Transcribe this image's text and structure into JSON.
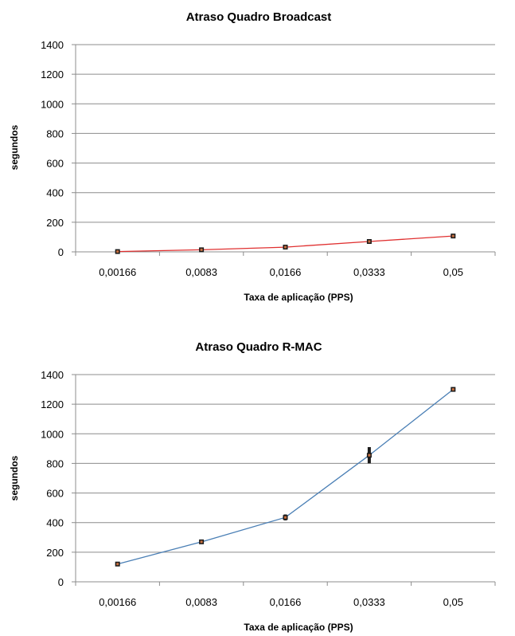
{
  "chart_data": [
    {
      "type": "line",
      "title": "Atraso Quadro Broadcast",
      "xlabel": "Taxa de aplicação (PPS)",
      "ylabel": "segundos",
      "categories": [
        "0,00166",
        "0,0083",
        "0,0166",
        "0,0333",
        "0,05"
      ],
      "y_ticks": [
        "0",
        "200",
        "400",
        "600",
        "800",
        "1000",
        "1200",
        "1400"
      ],
      "ylim": [
        0,
        1400
      ],
      "grid": true,
      "line_color": "#e03030",
      "marker_color": "#1a1a1a",
      "series": [
        {
          "values": [
            2,
            14,
            32,
            70,
            107
          ],
          "errors": [
            3,
            4,
            4,
            5,
            6
          ]
        }
      ]
    },
    {
      "type": "line",
      "title": "Atraso Quadro R-MAC",
      "xlabel": "Taxa de aplicação (PPS)",
      "ylabel": "segundos",
      "categories": [
        "0,00166",
        "0,0083",
        "0,0166",
        "0,0333",
        "0,05"
      ],
      "y_ticks": [
        "0",
        "200",
        "400",
        "600",
        "800",
        "1000",
        "1200",
        "1400"
      ],
      "ylim": [
        0,
        1400
      ],
      "grid": true,
      "line_color": "#4a7fb5",
      "marker_color": "#1a1a1a",
      "series": [
        {
          "values": [
            120,
            270,
            435,
            855,
            1300
          ],
          "errors": [
            5,
            8,
            20,
            55,
            6
          ]
        }
      ]
    }
  ]
}
